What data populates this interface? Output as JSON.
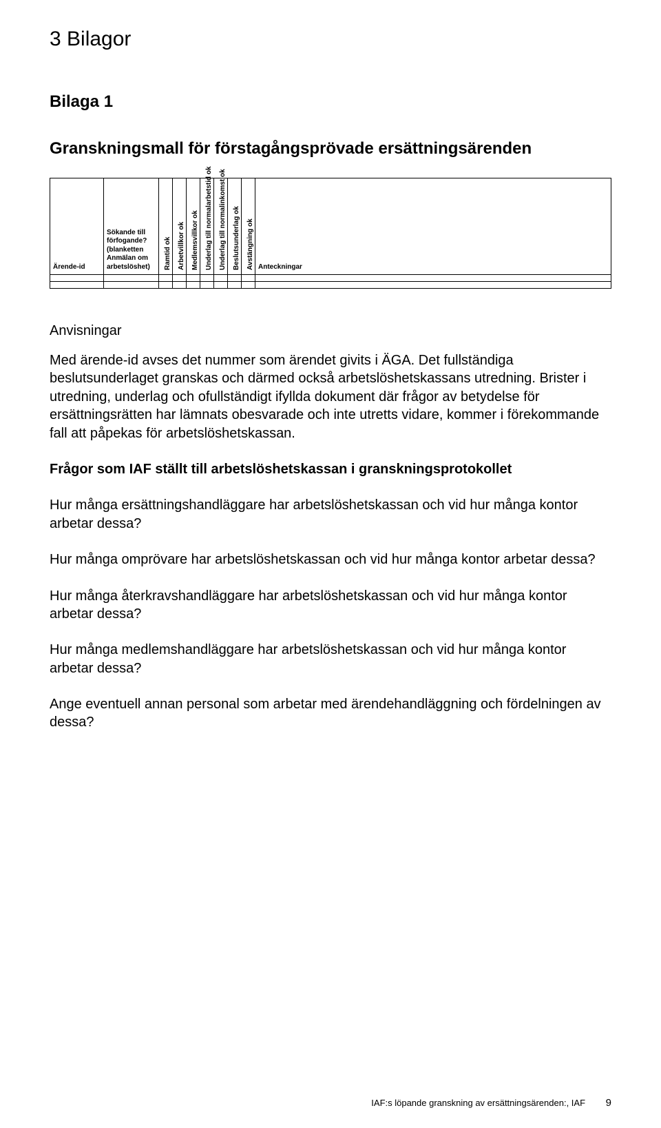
{
  "heading_section": "3  Bilagor",
  "heading_bilaga": "Bilaga 1",
  "heading_mall": "Granskningsmall för förstagångsprövade ersättningsärenden",
  "table": {
    "columns": [
      "Ärende-id",
      "Sökande till förfogande? (blanketten Anmälan om arbetslöshet)",
      "Ramtid ok",
      "Arbetvillkor ok",
      "Medlemsvillkor ok",
      "Underlag till normalarbetstid ok",
      "Underlag till normalinkomst ok",
      "Beslutsunderlag ok",
      "Avstängning ok",
      "Anteckningar"
    ]
  },
  "anvisningar_heading": "Anvisningar",
  "anvisningar_para1": "Med ärende-id avses det nummer som ärendet givits i ÄGA. Det fullständiga beslutsunderlaget granskas och därmed också arbetslöshetskassans utredning. Brister i utredning, underlag och ofullständigt ifyllda dokument där frågor av betydelse för ersättningsrätten har lämnats obesvarade och inte utretts vidare, kommer i förekommande fall att påpekas för arbetslöshetskassan.",
  "fragor_heading": "Frågor som IAF ställt till arbetslöshetskassan i granskningsprotokollet",
  "fragor": [
    "Hur många ersättningshandläggare har arbetslöshetskassan och vid hur många kontor arbetar dessa?",
    "Hur många omprövare har arbetslöshetskassan och vid hur många kontor arbetar dessa?",
    "Hur många återkravshandläggare har arbetslöshetskassan och vid hur många kontor arbetar dessa?",
    "Hur många medlemshandläggare har arbetslöshetskassan och vid hur många kontor arbetar dessa?",
    "Ange eventuell annan personal som arbetar med ärendehandläggning och fördelningen av dessa?"
  ],
  "footer_text": "IAF:s löpande granskning av ersättningsärenden:, IAF",
  "footer_page": "9"
}
